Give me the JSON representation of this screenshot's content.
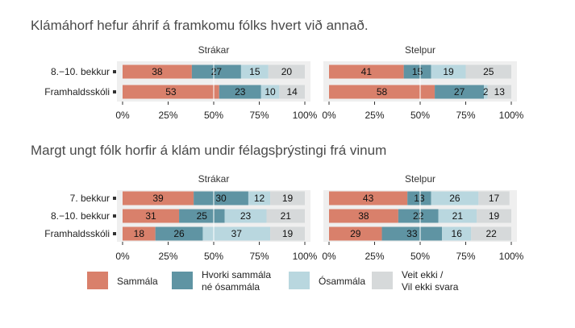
{
  "chart_data": [
    {
      "type": "bar",
      "orientation": "horizontal",
      "stacked": true,
      "title": "Klámáhorf hefur áhrif á framkomu fólks hvert við annað.",
      "categories": [
        "8.−10. bekkur",
        "Framhaldsskóli"
      ],
      "xlim": [
        0,
        100
      ],
      "xticks": [
        "0%",
        "25%",
        "50%",
        "75%",
        "100%"
      ],
      "facets": [
        {
          "label": "Strákar",
          "series": [
            {
              "name": "Sammála",
              "values": [
                38,
                53
              ]
            },
            {
              "name": "Hvorki sammála né ósammála",
              "values": [
                27,
                23
              ]
            },
            {
              "name": "Ósammála",
              "values": [
                15,
                10
              ]
            },
            {
              "name": "Veit ekki / Vil ekki svara",
              "values": [
                20,
                14
              ]
            }
          ]
        },
        {
          "label": "Stelpur",
          "series": [
            {
              "name": "Sammála",
              "values": [
                41,
                58
              ]
            },
            {
              "name": "Hvorki sammála né ósammála",
              "values": [
                15,
                27
              ]
            },
            {
              "name": "Ósammála",
              "values": [
                19,
                2
              ]
            },
            {
              "name": "Veit ekki / Vil ekki svara",
              "values": [
                25,
                13
              ]
            }
          ]
        }
      ]
    },
    {
      "type": "bar",
      "orientation": "horizontal",
      "stacked": true,
      "title": "Margt ungt fólk horfir á klám undir félagsþrýstingi frá vinum",
      "categories": [
        "7. bekkur",
        "8.−10. bekkur",
        "Framhaldsskóli"
      ],
      "xlim": [
        0,
        100
      ],
      "xticks": [
        "0%",
        "25%",
        "50%",
        "75%",
        "100%"
      ],
      "facets": [
        {
          "label": "Strákar",
          "series": [
            {
              "name": "Sammála",
              "values": [
                39,
                31,
                18
              ]
            },
            {
              "name": "Hvorki sammála né ósammála",
              "values": [
                30,
                25,
                26
              ]
            },
            {
              "name": "Ósammála",
              "values": [
                12,
                23,
                37
              ]
            },
            {
              "name": "Veit ekki / Vil ekki svara",
              "values": [
                19,
                21,
                19
              ]
            }
          ]
        },
        {
          "label": "Stelpur",
          "series": [
            {
              "name": "Sammála",
              "values": [
                43,
                38,
                29
              ]
            },
            {
              "name": "Hvorki sammála né ósammála",
              "values": [
                13,
                22,
                33
              ]
            },
            {
              "name": "Ósammála",
              "values": [
                26,
                21,
                16
              ]
            },
            {
              "name": "Veit ekki / Vil ekki svara",
              "values": [
                17,
                19,
                22
              ]
            }
          ]
        }
      ]
    }
  ],
  "legend": {
    "position": "bottom",
    "items": [
      {
        "lines": [
          "Sammála"
        ],
        "color": "#d9806b"
      },
      {
        "lines": [
          "Hvorki sammála",
          "né ósammála"
        ],
        "color": "#5f94a3"
      },
      {
        "lines": [
          "Ósammála"
        ],
        "color": "#b9d7df"
      },
      {
        "lines": [
          "Veit ekki /",
          "Vil ekki svara"
        ],
        "color": "#d6d9da"
      }
    ]
  },
  "colors": {
    "panel_background": "#efefef",
    "midline": "#ffffff",
    "tick_mark": "#333333"
  }
}
